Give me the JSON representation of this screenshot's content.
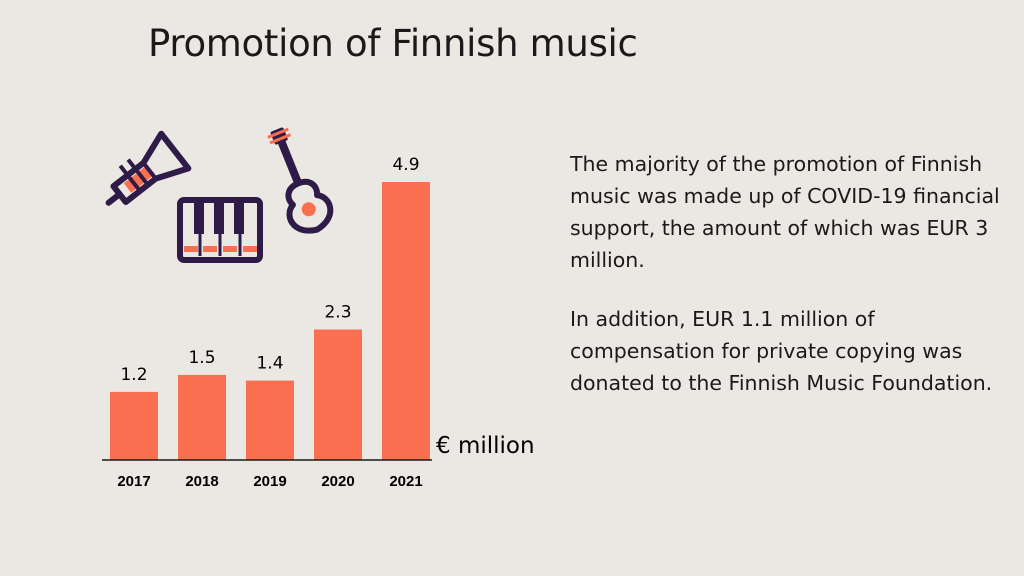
{
  "title": "Promotion of Finnish music",
  "paragraphs": [
    "The majority of the promotion of Finnish music was made up of COVID-19 financial support, the amount of which was EUR 3 million.",
    "In addition, EUR 1.1 million of compensation for private copying was donated to the Finnish Music Foundation."
  ],
  "icons": [
    "trumpet-icon",
    "piano-keyboard-icon",
    "guitar-icon"
  ],
  "colors": {
    "bar": "#fa6f4f",
    "background": "#ebe7e3",
    "icon_dark": "#2e1b48",
    "text": "#1a1a1a"
  },
  "chart_data": {
    "type": "bar",
    "categories": [
      "2017",
      "2018",
      "2019",
      "2020",
      "2021"
    ],
    "values": [
      1.2,
      1.5,
      1.4,
      2.3,
      4.9
    ],
    "data_labels": [
      "1.2",
      "1.5",
      "1.4",
      "2.3",
      "4.9"
    ],
    "title": "",
    "xlabel": "",
    "ylabel": "",
    "unit_label": "€ million",
    "ylim": [
      0,
      4.9
    ],
    "grid": false,
    "legend": "none"
  }
}
